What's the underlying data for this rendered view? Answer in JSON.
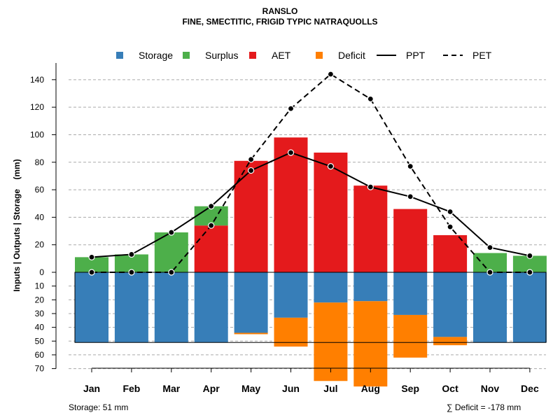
{
  "chart_data": {
    "type": "bar",
    "title": "RANSLO",
    "subtitle": "FINE, SMECTITIC, FRIGID TYPIC NATRAQUOLLS",
    "ylabel": "Inputs | Outputs | Storage    (mm)",
    "xlabel": "",
    "categories": [
      "Jan",
      "Feb",
      "Mar",
      "Apr",
      "May",
      "Jun",
      "Jul",
      "Aug",
      "Sep",
      "Oct",
      "Nov",
      "Dec"
    ],
    "ylim": [
      -70,
      150
    ],
    "yticks_upper": [
      0,
      20,
      40,
      60,
      80,
      100,
      120,
      140
    ],
    "yticks_lower": [
      10,
      20,
      30,
      40,
      50,
      60,
      70
    ],
    "grid": true,
    "legend_position": "top",
    "legend": [
      {
        "label": "Storage",
        "kind": "square",
        "color": "#377EB8"
      },
      {
        "label": "Surplus",
        "kind": "square",
        "color": "#4DAF4A"
      },
      {
        "label": "AET",
        "kind": "square",
        "color": "#E41A1C"
      },
      {
        "label": "Deficit",
        "kind": "square",
        "color": "#FF7F00"
      },
      {
        "label": "PPT",
        "kind": "solid-line",
        "color": "#000000"
      },
      {
        "label": "PET",
        "kind": "dashed-line",
        "color": "#000000"
      }
    ],
    "series": [
      {
        "name": "Storage",
        "values": [
          51,
          51,
          51,
          51,
          44,
          33,
          22,
          21,
          31,
          47,
          51,
          51
        ]
      },
      {
        "name": "Surplus",
        "values": [
          11,
          13,
          29,
          14,
          0,
          0,
          0,
          0,
          0,
          0,
          14,
          12
        ]
      },
      {
        "name": "AET",
        "values": [
          0,
          0,
          0,
          34,
          81,
          98,
          87,
          63,
          46,
          27,
          0,
          0
        ]
      },
      {
        "name": "Deficit",
        "values": [
          0,
          0,
          0,
          0,
          1,
          21,
          57,
          62,
          31,
          6,
          0,
          0
        ]
      },
      {
        "name": "PPT",
        "values": [
          11,
          13,
          29,
          48,
          74,
          87,
          77,
          62,
          55,
          44,
          18,
          12
        ]
      },
      {
        "name": "PET",
        "values": [
          0,
          0,
          0,
          34,
          82,
          119,
          144,
          126,
          77,
          33,
          0,
          0
        ]
      }
    ],
    "storage_capacity": 51,
    "annotations": {
      "storage": "Storage: 51 mm",
      "deficit": "∑ Deficit = -178 mm"
    }
  }
}
